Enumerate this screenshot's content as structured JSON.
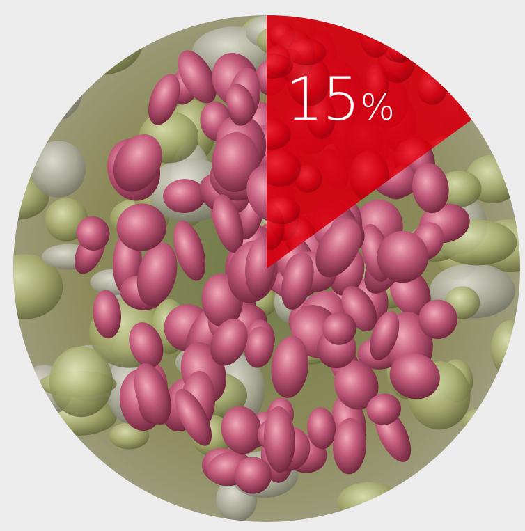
{
  "chart_data": {
    "type": "pie",
    "slices": [
      {
        "value": 15,
        "color": "#d4000f",
        "highlighted": true
      },
      {
        "value": 85,
        "color": "photo"
      }
    ],
    "label_number": "15",
    "label_unit": "%"
  },
  "colors": {
    "background": "#ececec",
    "accent": "#d4000f",
    "label_text": "#ffffff"
  },
  "background_image": "coral-reef-photo"
}
